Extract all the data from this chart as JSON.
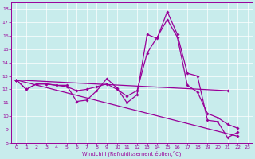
{
  "title": "",
  "xlabel": "Windchill (Refroidissement éolien,°C)",
  "background_color": "#c8ecec",
  "line_color": "#990099",
  "grid_color": "#ffffff",
  "xlim": [
    -0.5,
    23.5
  ],
  "ylim": [
    8,
    18.5
  ],
  "xticks": [
    0,
    1,
    2,
    3,
    4,
    5,
    6,
    7,
    8,
    9,
    10,
    11,
    12,
    13,
    14,
    15,
    16,
    17,
    18,
    19,
    20,
    21,
    22,
    23
  ],
  "yticks": [
    8,
    9,
    10,
    11,
    12,
    13,
    14,
    15,
    16,
    17,
    18
  ],
  "series": [
    {
      "x": [
        0,
        1,
        2,
        3,
        4,
        5,
        6,
        7,
        8,
        9,
        10,
        11,
        12,
        13,
        14,
        15,
        16,
        17,
        18,
        19,
        20,
        21,
        22
      ],
      "y": [
        12.7,
        12.0,
        12.4,
        12.4,
        12.3,
        12.3,
        11.1,
        11.2,
        11.9,
        12.8,
        12.1,
        11.0,
        11.6,
        16.1,
        15.8,
        17.8,
        16.1,
        13.2,
        13.0,
        9.7,
        9.6,
        8.4,
        8.8
      ]
    },
    {
      "x": [
        0,
        1,
        2,
        3,
        4,
        5,
        6,
        7,
        8,
        9,
        10,
        11,
        12,
        13,
        14,
        15,
        16,
        17,
        18,
        19,
        20,
        21,
        22
      ],
      "y": [
        12.7,
        12.0,
        12.4,
        12.4,
        12.3,
        12.2,
        11.9,
        12.0,
        12.2,
        12.4,
        12.0,
        11.5,
        11.9,
        14.7,
        15.9,
        17.2,
        15.9,
        12.3,
        11.8,
        10.2,
        9.9,
        9.4,
        9.1
      ]
    },
    {
      "x": [
        0,
        21
      ],
      "y": [
        12.7,
        11.9
      ]
    },
    {
      "x": [
        0,
        22
      ],
      "y": [
        12.7,
        8.5
      ]
    }
  ]
}
